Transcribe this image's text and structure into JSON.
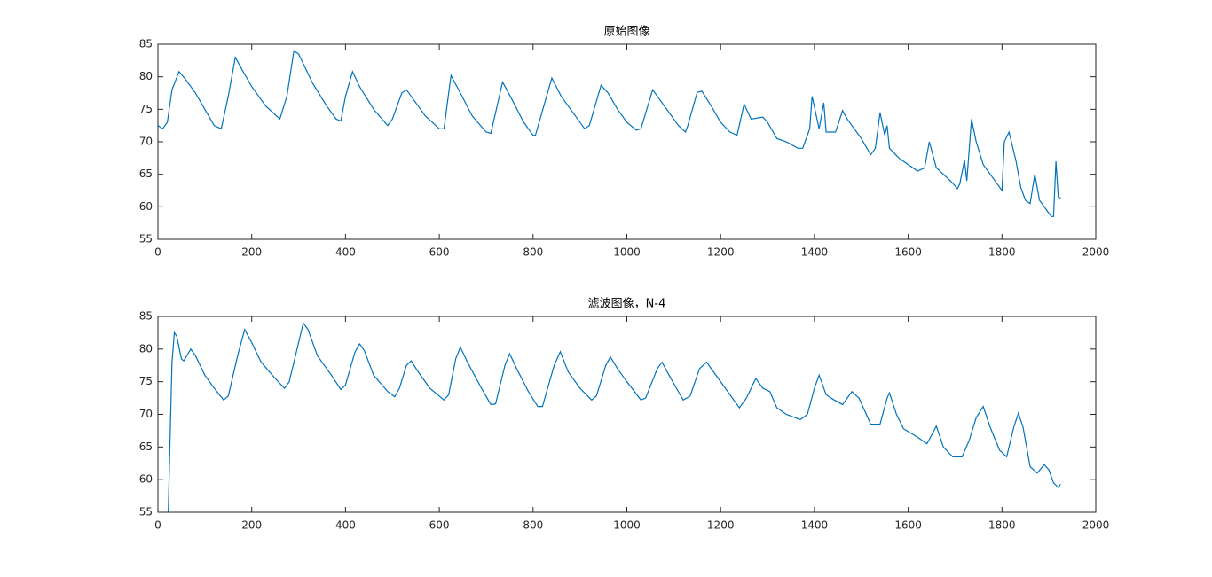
{
  "chart_data": [
    {
      "type": "line",
      "title": "原始图像",
      "x": [
        0,
        10,
        20,
        30,
        45,
        60,
        80,
        100,
        120,
        135,
        150,
        165,
        180,
        200,
        230,
        260,
        275,
        290,
        300,
        330,
        360,
        380,
        390,
        400,
        415,
        430,
        460,
        490,
        500,
        520,
        530,
        545,
        570,
        600,
        610,
        625,
        645,
        670,
        700,
        710,
        735,
        755,
        780,
        800,
        805,
        840,
        860,
        890,
        910,
        920,
        945,
        960,
        980,
        1000,
        1020,
        1030,
        1055,
        1070,
        1090,
        1110,
        1125,
        1130,
        1150,
        1160,
        1180,
        1200,
        1220,
        1235,
        1250,
        1265,
        1290,
        1300,
        1320,
        1340,
        1365,
        1375,
        1390,
        1395,
        1410,
        1420,
        1425,
        1445,
        1460,
        1470,
        1500,
        1520,
        1530,
        1540,
        1550,
        1555,
        1560,
        1580,
        1620,
        1635,
        1645,
        1660,
        1690,
        1705,
        1710,
        1720,
        1725,
        1735,
        1745,
        1760,
        1780,
        1800,
        1805,
        1815,
        1830,
        1840,
        1850,
        1860,
        1870,
        1880,
        1895,
        1905,
        1910,
        1915,
        1920,
        1925
      ],
      "values": [
        72.5,
        72,
        73,
        78,
        80.8,
        79.5,
        77.5,
        75,
        72.5,
        72,
        77,
        83,
        81,
        78.5,
        75.5,
        73.5,
        77,
        84,
        83.5,
        79,
        75.5,
        73.5,
        73.2,
        77,
        80.8,
        78.5,
        75,
        72.5,
        73.5,
        77.5,
        78,
        76.5,
        74,
        72,
        72,
        80.2,
        77.5,
        74,
        71.5,
        71.3,
        79.2,
        76.5,
        73,
        71,
        71,
        79.8,
        77,
        74,
        72,
        72.5,
        78.7,
        77.5,
        75,
        73,
        71.8,
        72,
        78,
        76.5,
        74.5,
        72.5,
        71.5,
        72.5,
        77.6,
        77.8,
        75.5,
        73,
        71.5,
        71,
        75.8,
        73.5,
        73.8,
        73,
        70.5,
        70,
        69,
        69,
        72,
        77,
        72,
        76,
        71.5,
        71.5,
        74.8,
        73.5,
        70.5,
        68,
        69,
        74.5,
        71,
        72.5,
        69,
        67.5,
        65.5,
        66,
        70,
        66,
        64,
        62.8,
        63.5,
        67.2,
        64,
        73.5,
        70,
        66.5,
        64.5,
        62.5,
        70,
        71.5,
        67,
        63,
        61,
        60.5,
        65,
        61,
        59.5,
        58.5,
        58.5,
        67,
        61.5,
        61.3
      ],
      "color": "#0072bd",
      "xlim": [
        0,
        2000
      ],
      "ylim": [
        55,
        85
      ],
      "xticks": [
        0,
        200,
        400,
        600,
        800,
        1000,
        1200,
        1400,
        1600,
        1800,
        2000
      ],
      "yticks": [
        55,
        60,
        65,
        70,
        75,
        80,
        85
      ]
    },
    {
      "type": "line",
      "title": "滤波图像，N-4",
      "x": [
        22,
        30,
        35,
        40,
        50,
        55,
        70,
        80,
        100,
        120,
        140,
        150,
        170,
        185,
        200,
        220,
        250,
        270,
        280,
        300,
        310,
        320,
        340,
        370,
        390,
        400,
        420,
        430,
        440,
        460,
        490,
        505,
        515,
        530,
        540,
        555,
        580,
        610,
        620,
        635,
        645,
        660,
        690,
        710,
        720,
        740,
        750,
        765,
        790,
        810,
        820,
        845,
        858,
        875,
        900,
        925,
        935,
        955,
        965,
        980,
        1000,
        1030,
        1040,
        1065,
        1075,
        1090,
        1120,
        1135,
        1155,
        1170,
        1185,
        1210,
        1240,
        1255,
        1275,
        1290,
        1305,
        1320,
        1340,
        1370,
        1385,
        1400,
        1410,
        1425,
        1440,
        1460,
        1480,
        1495,
        1520,
        1540,
        1555,
        1560,
        1575,
        1590,
        1620,
        1640,
        1660,
        1675,
        1695,
        1715,
        1730,
        1745,
        1760,
        1775,
        1795,
        1810,
        1825,
        1835,
        1845,
        1860,
        1875,
        1890,
        1900,
        1910,
        1920,
        1925
      ],
      "values": [
        55,
        78,
        82.5,
        82,
        78.5,
        78.2,
        80,
        79,
        76,
        74,
        72.2,
        72.8,
        79,
        83,
        81,
        78,
        75.5,
        74,
        75,
        81,
        84,
        83,
        79,
        76,
        73.8,
        74.5,
        79.5,
        80.8,
        79.8,
        76,
        73.5,
        72.7,
        74,
        77.5,
        78.2,
        76.5,
        74,
        72.2,
        73,
        78.5,
        80.3,
        78,
        74,
        71.5,
        71.6,
        77.5,
        79.3,
        77,
        73.5,
        71.2,
        71.2,
        77.5,
        79.6,
        76.5,
        74,
        72.2,
        72.8,
        77.5,
        78.8,
        77,
        75,
        72.2,
        72.5,
        77,
        78,
        76,
        72.2,
        72.8,
        77,
        78,
        76.5,
        74,
        71,
        72.5,
        75.5,
        74,
        73.5,
        71,
        70,
        69.2,
        70,
        74,
        76,
        73,
        72.3,
        71.5,
        73.5,
        72.5,
        68.5,
        68.5,
        72.5,
        73.3,
        70,
        67.8,
        66.5,
        65.5,
        68.2,
        65,
        63.5,
        63.5,
        66,
        69.5,
        71.2,
        68,
        64.5,
        63.5,
        68,
        70.2,
        68,
        62,
        61,
        62.3,
        61.5,
        59.5,
        58.8,
        59.3
      ],
      "color": "#0072bd",
      "xlim": [
        0,
        2000
      ],
      "ylim": [
        55,
        85
      ],
      "xticks": [
        0,
        200,
        400,
        600,
        800,
        1000,
        1200,
        1400,
        1600,
        1800,
        2000
      ],
      "yticks": [
        55,
        60,
        65,
        70,
        75,
        80,
        85
      ]
    }
  ]
}
